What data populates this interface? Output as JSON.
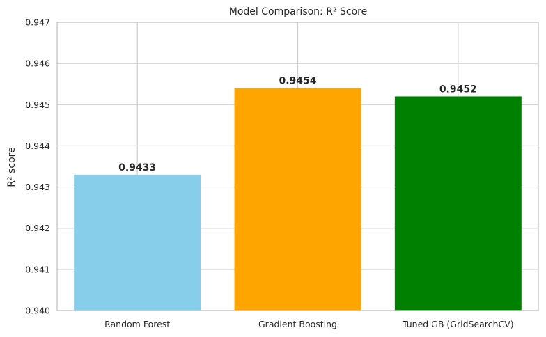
{
  "chart_data": {
    "type": "bar",
    "title": "Model Comparison: R² Score",
    "xlabel": "",
    "ylabel": "R² score",
    "categories": [
      "Random Forest",
      "Gradient Boosting",
      "Tuned GB (GridSearchCV)"
    ],
    "values": [
      0.9433,
      0.9454,
      0.9452
    ],
    "value_labels": [
      "0.9433",
      "0.9454",
      "0.9452"
    ],
    "colors": [
      "#87ceeb",
      "#ffa500",
      "#008000"
    ],
    "ylim": [
      0.94,
      0.947
    ],
    "yticks": [
      0.94,
      0.941,
      0.942,
      0.943,
      0.944,
      0.945,
      0.946,
      0.947
    ],
    "ytick_labels": [
      "0.940",
      "0.941",
      "0.942",
      "0.943",
      "0.944",
      "0.945",
      "0.946",
      "0.947"
    ],
    "grid": true,
    "legend": "none"
  }
}
